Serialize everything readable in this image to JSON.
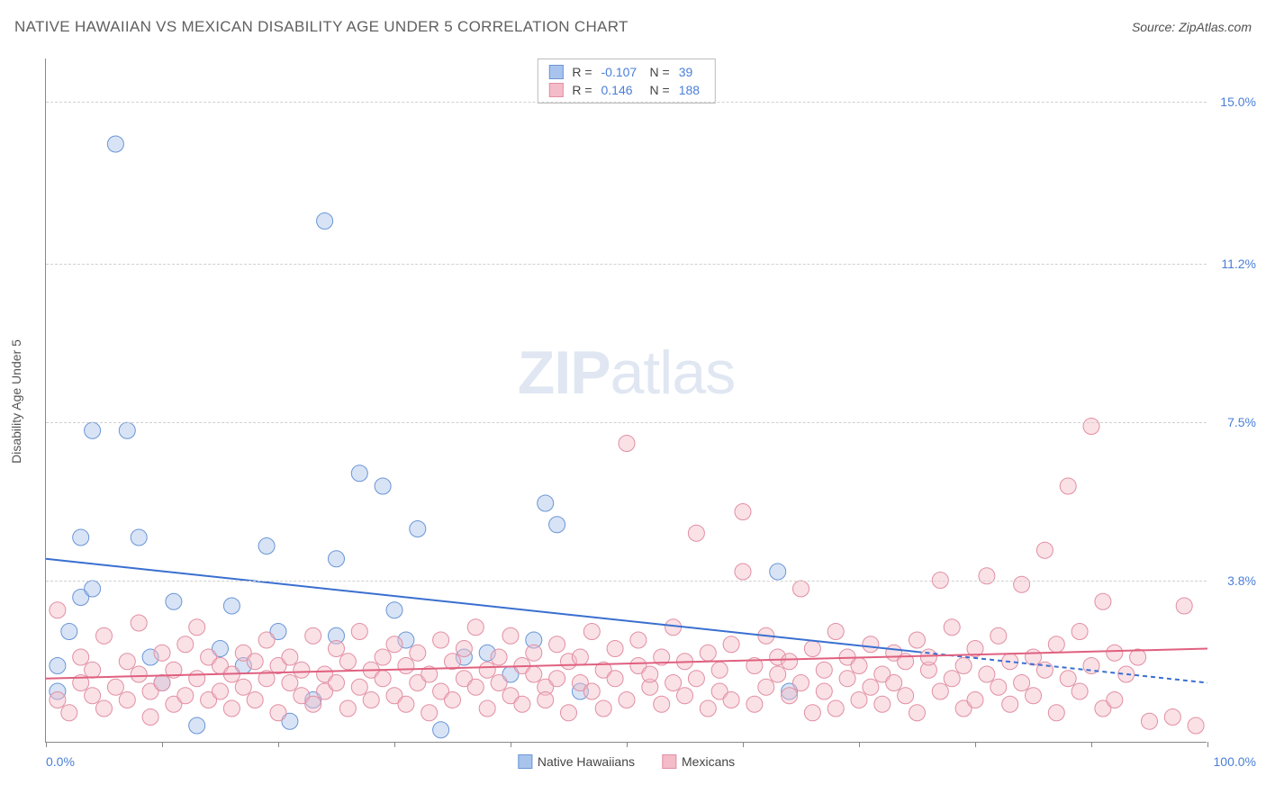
{
  "title": "NATIVE HAWAIIAN VS MEXICAN DISABILITY AGE UNDER 5 CORRELATION CHART",
  "source": "Source: ZipAtlas.com",
  "ylabel": "Disability Age Under 5",
  "watermark_a": "ZIP",
  "watermark_b": "atlas",
  "chart": {
    "type": "scatter-correlation",
    "xlim": [
      0,
      100
    ],
    "ylim": [
      0,
      16
    ],
    "xaxis_min_label": "0.0%",
    "xaxis_max_label": "100.0%",
    "ytick_values": [
      3.8,
      7.5,
      11.2,
      15.0
    ],
    "ytick_labels": [
      "3.8%",
      "7.5%",
      "11.2%",
      "15.0%"
    ],
    "xtick_values": [
      0,
      10,
      20,
      30,
      40,
      50,
      60,
      70,
      80,
      90,
      100
    ],
    "grid_color": "#d0d0d0",
    "axis_color": "#888888",
    "background_color": "#ffffff",
    "label_color": "#4a7fd8",
    "marker_radius": 9,
    "marker_opacity": 0.45,
    "series": [
      {
        "name": "Native Hawaiians",
        "color_fill": "#a9c4ec",
        "color_stroke": "#6a95d6",
        "R": "-0.107",
        "N": "39",
        "trend": {
          "y_at_x0": 4.3,
          "y_at_x100": 1.4,
          "solid_until_x": 75,
          "color": "#3a6fd0",
          "width": 2
        },
        "points": [
          [
            1,
            1.2
          ],
          [
            1,
            1.8
          ],
          [
            2,
            2.6
          ],
          [
            3,
            3.4
          ],
          [
            3,
            4.8
          ],
          [
            4,
            7.3
          ],
          [
            4,
            3.6
          ],
          [
            6,
            14.0
          ],
          [
            7,
            7.3
          ],
          [
            8,
            4.8
          ],
          [
            9,
            2.0
          ],
          [
            10,
            1.4
          ],
          [
            11,
            3.3
          ],
          [
            13,
            0.4
          ],
          [
            15,
            2.2
          ],
          [
            16,
            3.2
          ],
          [
            17,
            1.8
          ],
          [
            19,
            4.6
          ],
          [
            20,
            2.6
          ],
          [
            21,
            0.5
          ],
          [
            23,
            1.0
          ],
          [
            24,
            12.2
          ],
          [
            25,
            4.3
          ],
          [
            25,
            2.5
          ],
          [
            27,
            6.3
          ],
          [
            29,
            6.0
          ],
          [
            30,
            3.1
          ],
          [
            31,
            2.4
          ],
          [
            32,
            5.0
          ],
          [
            34,
            0.3
          ],
          [
            36,
            2.0
          ],
          [
            38,
            2.1
          ],
          [
            40,
            1.6
          ],
          [
            42,
            2.4
          ],
          [
            43,
            5.6
          ],
          [
            44,
            5.1
          ],
          [
            46,
            1.2
          ],
          [
            63,
            4.0
          ],
          [
            64,
            1.2
          ]
        ]
      },
      {
        "name": "Mexicans",
        "color_fill": "#f3bcc8",
        "color_stroke": "#e18fa3",
        "R": "0.146",
        "N": "188",
        "trend": {
          "y_at_x0": 1.5,
          "y_at_x100": 2.2,
          "solid_until_x": 100,
          "color": "#e0607f",
          "width": 2
        },
        "points": [
          [
            1,
            1.0
          ],
          [
            1,
            3.1
          ],
          [
            2,
            0.7
          ],
          [
            3,
            1.4
          ],
          [
            3,
            2.0
          ],
          [
            4,
            1.1
          ],
          [
            4,
            1.7
          ],
          [
            5,
            2.5
          ],
          [
            5,
            0.8
          ],
          [
            6,
            1.3
          ],
          [
            7,
            1.0
          ],
          [
            7,
            1.9
          ],
          [
            8,
            1.6
          ],
          [
            8,
            2.8
          ],
          [
            9,
            1.2
          ],
          [
            9,
            0.6
          ],
          [
            10,
            2.1
          ],
          [
            10,
            1.4
          ],
          [
            11,
            1.7
          ],
          [
            11,
            0.9
          ],
          [
            12,
            1.1
          ],
          [
            12,
            2.3
          ],
          [
            13,
            2.7
          ],
          [
            13,
            1.5
          ],
          [
            14,
            1.0
          ],
          [
            14,
            2.0
          ],
          [
            15,
            1.8
          ],
          [
            15,
            1.2
          ],
          [
            16,
            1.6
          ],
          [
            16,
            0.8
          ],
          [
            17,
            2.1
          ],
          [
            17,
            1.3
          ],
          [
            18,
            1.9
          ],
          [
            18,
            1.0
          ],
          [
            19,
            1.5
          ],
          [
            19,
            2.4
          ],
          [
            20,
            0.7
          ],
          [
            20,
            1.8
          ],
          [
            21,
            1.4
          ],
          [
            21,
            2.0
          ],
          [
            22,
            1.1
          ],
          [
            22,
            1.7
          ],
          [
            23,
            2.5
          ],
          [
            23,
            0.9
          ],
          [
            24,
            1.6
          ],
          [
            24,
            1.2
          ],
          [
            25,
            2.2
          ],
          [
            25,
            1.4
          ],
          [
            26,
            0.8
          ],
          [
            26,
            1.9
          ],
          [
            27,
            1.3
          ],
          [
            27,
            2.6
          ],
          [
            28,
            1.0
          ],
          [
            28,
            1.7
          ],
          [
            29,
            2.0
          ],
          [
            29,
            1.5
          ],
          [
            30,
            1.1
          ],
          [
            30,
            2.3
          ],
          [
            31,
            0.9
          ],
          [
            31,
            1.8
          ],
          [
            32,
            1.4
          ],
          [
            32,
            2.1
          ],
          [
            33,
            1.6
          ],
          [
            33,
            0.7
          ],
          [
            34,
            2.4
          ],
          [
            34,
            1.2
          ],
          [
            35,
            1.9
          ],
          [
            35,
            1.0
          ],
          [
            36,
            2.2
          ],
          [
            36,
            1.5
          ],
          [
            37,
            1.3
          ],
          [
            37,
            2.7
          ],
          [
            38,
            0.8
          ],
          [
            38,
            1.7
          ],
          [
            39,
            2.0
          ],
          [
            39,
            1.4
          ],
          [
            40,
            1.1
          ],
          [
            40,
            2.5
          ],
          [
            41,
            1.8
          ],
          [
            41,
            0.9
          ],
          [
            42,
            1.6
          ],
          [
            42,
            2.1
          ],
          [
            43,
            1.3
          ],
          [
            43,
            1.0
          ],
          [
            44,
            2.3
          ],
          [
            44,
            1.5
          ],
          [
            45,
            1.9
          ],
          [
            45,
            0.7
          ],
          [
            46,
            2.0
          ],
          [
            46,
            1.4
          ],
          [
            47,
            1.2
          ],
          [
            47,
            2.6
          ],
          [
            48,
            1.7
          ],
          [
            48,
            0.8
          ],
          [
            49,
            2.2
          ],
          [
            49,
            1.5
          ],
          [
            50,
            7.0
          ],
          [
            50,
            1.0
          ],
          [
            51,
            1.8
          ],
          [
            51,
            2.4
          ],
          [
            52,
            1.3
          ],
          [
            52,
            1.6
          ],
          [
            53,
            0.9
          ],
          [
            53,
            2.0
          ],
          [
            54,
            1.4
          ],
          [
            54,
            2.7
          ],
          [
            55,
            1.1
          ],
          [
            55,
            1.9
          ],
          [
            56,
            4.9
          ],
          [
            56,
            1.5
          ],
          [
            57,
            2.1
          ],
          [
            57,
            0.8
          ],
          [
            58,
            1.7
          ],
          [
            58,
            1.2
          ],
          [
            59,
            2.3
          ],
          [
            59,
            1.0
          ],
          [
            60,
            4.0
          ],
          [
            60,
            5.4
          ],
          [
            61,
            1.8
          ],
          [
            61,
            0.9
          ],
          [
            62,
            2.5
          ],
          [
            62,
            1.3
          ],
          [
            63,
            1.6
          ],
          [
            63,
            2.0
          ],
          [
            64,
            1.1
          ],
          [
            64,
            1.9
          ],
          [
            65,
            3.6
          ],
          [
            65,
            1.4
          ],
          [
            66,
            0.7
          ],
          [
            66,
            2.2
          ],
          [
            67,
            1.7
          ],
          [
            67,
            1.2
          ],
          [
            68,
            2.6
          ],
          [
            68,
            0.8
          ],
          [
            69,
            1.5
          ],
          [
            69,
            2.0
          ],
          [
            70,
            1.0
          ],
          [
            70,
            1.8
          ],
          [
            71,
            2.3
          ],
          [
            71,
            1.3
          ],
          [
            72,
            1.6
          ],
          [
            72,
            0.9
          ],
          [
            73,
            2.1
          ],
          [
            73,
            1.4
          ],
          [
            74,
            1.9
          ],
          [
            74,
            1.1
          ],
          [
            75,
            2.4
          ],
          [
            75,
            0.7
          ],
          [
            76,
            1.7
          ],
          [
            76,
            2.0
          ],
          [
            77,
            3.8
          ],
          [
            77,
            1.2
          ],
          [
            78,
            1.5
          ],
          [
            78,
            2.7
          ],
          [
            79,
            0.8
          ],
          [
            79,
            1.8
          ],
          [
            80,
            2.2
          ],
          [
            80,
            1.0
          ],
          [
            81,
            1.6
          ],
          [
            81,
            3.9
          ],
          [
            82,
            1.3
          ],
          [
            82,
            2.5
          ],
          [
            83,
            0.9
          ],
          [
            83,
            1.9
          ],
          [
            84,
            3.7
          ],
          [
            84,
            1.4
          ],
          [
            85,
            2.0
          ],
          [
            85,
            1.1
          ],
          [
            86,
            4.5
          ],
          [
            86,
            1.7
          ],
          [
            87,
            0.7
          ],
          [
            87,
            2.3
          ],
          [
            88,
            6.0
          ],
          [
            88,
            1.5
          ],
          [
            89,
            1.2
          ],
          [
            89,
            2.6
          ],
          [
            90,
            7.4
          ],
          [
            90,
            1.8
          ],
          [
            91,
            3.3
          ],
          [
            91,
            0.8
          ],
          [
            92,
            2.1
          ],
          [
            92,
            1.0
          ],
          [
            93,
            1.6
          ],
          [
            94,
            2.0
          ],
          [
            95,
            0.5
          ],
          [
            97,
            0.6
          ],
          [
            98,
            3.2
          ],
          [
            99,
            0.4
          ]
        ]
      }
    ]
  }
}
